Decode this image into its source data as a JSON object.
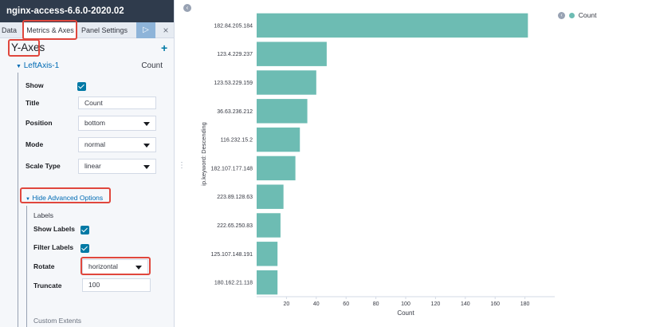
{
  "sidebar": {
    "index_pattern": "nginx-access-6.6.0-2020.02",
    "tabs": [
      "Data",
      "Metrics & Axes",
      "Panel Settings"
    ],
    "apply_icon": "play-icon",
    "discard_icon": "close-icon",
    "section_title": "Y-Axes",
    "add_icon": "plus-icon",
    "axis": {
      "name": "LeftAxis-1",
      "type": "Count",
      "show_label": "Show",
      "show": true,
      "title_label": "Title",
      "title_value": "Count",
      "position_label": "Position",
      "position_value": "bottom",
      "mode_label": "Mode",
      "mode_value": "normal",
      "scale_label": "Scale Type",
      "scale_value": "linear"
    },
    "advanced": {
      "toggle": "Hide Advanced Options",
      "labels_heading": "Labels",
      "show_labels_label": "Show Labels",
      "show_labels": true,
      "filter_labels_label": "Filter Labels",
      "filter_labels": true,
      "rotate_label": "Rotate",
      "rotate_value": "horizontal",
      "truncate_label": "Truncate",
      "truncate_value": "100"
    },
    "custom_extents": "Custom Extents"
  },
  "legend": {
    "label": "Count",
    "color": "#6dbcb3",
    "toggle_icon": "chevron-left-icon"
  },
  "chart_data": {
    "type": "bar",
    "orientation": "horizontal",
    "categories": [
      "182.84.205.184",
      "123.4.229.237",
      "123.53.229.159",
      "36.63.236.212",
      "116.232.15.2",
      "182.107.177.148",
      "223.89.128.63",
      "222.65.250.83",
      "125.107.148.191",
      "180.162.21.118"
    ],
    "values": [
      182,
      47,
      40,
      34,
      29,
      26,
      18,
      16,
      14,
      14
    ],
    "xlabel": "Count",
    "ylabel": "ip.keyword: Descending",
    "xticks": [
      20,
      40,
      60,
      80,
      100,
      120,
      140,
      160,
      180
    ],
    "xlim": [
      0,
      200
    ],
    "color": "#6dbcb3",
    "grid": false
  }
}
